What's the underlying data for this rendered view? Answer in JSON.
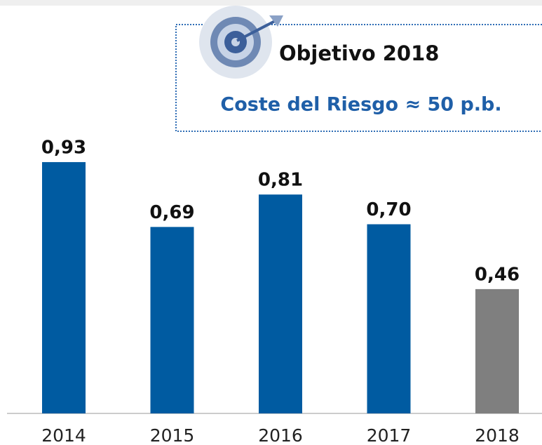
{
  "chart_data": {
    "type": "bar",
    "categories": [
      "2014",
      "2015",
      "2016",
      "2017",
      "2018"
    ],
    "values": [
      0.93,
      0.69,
      0.81,
      0.7,
      0.46
    ],
    "value_labels": [
      "0,93",
      "0,69",
      "0,81",
      "0,70",
      "0,46"
    ],
    "colors": [
      "#005ba1",
      "#005ba1",
      "#005ba1",
      "#005ba1",
      "#7f7f7f"
    ],
    "annotation": {
      "title": "Objetivo 2018",
      "text": "Coste del Riesgo ≈ 50 p.b."
    }
  }
}
